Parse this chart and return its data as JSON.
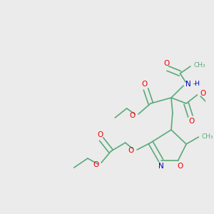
{
  "bg_color": "#ebebeb",
  "bond_color": "#5aaa7a",
  "O_color": "#ee0000",
  "N_color": "#0000bb",
  "figsize": [
    3.0,
    3.0
  ],
  "dpi": 100,
  "xlim": [
    0,
    300
  ],
  "ylim": [
    0,
    300
  ]
}
